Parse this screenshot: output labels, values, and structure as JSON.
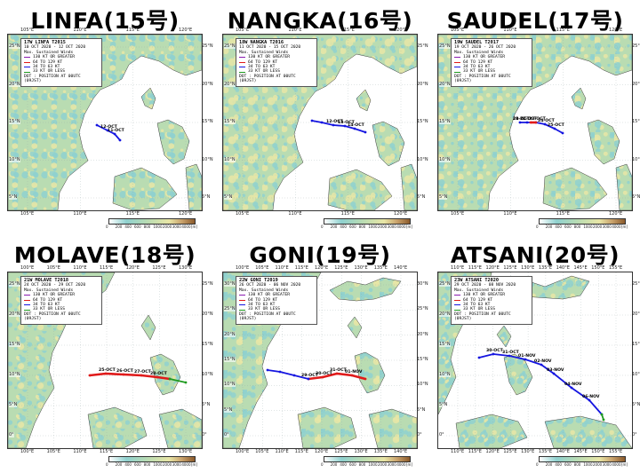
{
  "colors": {
    "land_green": "#b9dcb2",
    "land_yellow": "#e8e6a6",
    "land_cyan": "#8fd1cf",
    "ocean": "#ffffff",
    "track_blue": "#1515e0",
    "track_red": "#e01a1a",
    "track_green": "#1e9a1e",
    "track_purple": "#8a1ab0"
  },
  "panels": [
    {
      "title": "LINFA(15号)",
      "legend_title": "17W  LINFA  T2015",
      "date_range": "10 OCT 2020 - 12 OCT 2020",
      "top_lon_labels": [
        "105°E",
        "110°E",
        "115°E",
        "120°E"
      ],
      "bottom_lon_labels": [
        "105°E",
        "110°E",
        "115°E",
        "120°E"
      ],
      "right_lat_labels": [
        "25°N",
        "20°N",
        "15°N",
        "10°N",
        "5°N"
      ],
      "left_lat_labels": [
        "25°N",
        "20°N",
        "15°N",
        "10°N",
        "5°N"
      ],
      "date_labels": [
        "11-OCT",
        "12-OCT"
      ],
      "tracks": [
        {
          "color": "track_blue",
          "points": [
            [
              126,
              119
            ],
            [
              120,
              112
            ],
            [
              112,
              108
            ],
            [
              100,
              102
            ]
          ]
        }
      ]
    },
    {
      "title": "NANGKA(16号)",
      "legend_title": "18W  NANGKA  T2016",
      "date_range": "11 OCT 2020 - 15 OCT 2020",
      "top_lon_labels": [
        "105°E",
        "110°E",
        "115°E",
        "120°E"
      ],
      "bottom_lon_labels": [
        "105°E",
        "110°E",
        "115°E",
        "120°E"
      ],
      "right_lat_labels": [
        "25°N",
        "20°N",
        "15°N",
        "10°N",
        "5°N"
      ],
      "left_lat_labels": [
        "25°N",
        "20°N",
        "15°N",
        "10°N",
        "5°N"
      ],
      "date_labels": [
        "14-OCT",
        "13-OCT",
        "12-OCT"
      ],
      "tracks": [
        {
          "color": "track_blue",
          "points": [
            [
              160,
              110
            ],
            [
              148,
              106
            ],
            [
              137,
              103
            ],
            [
              124,
              102
            ],
            [
              111,
              99
            ],
            [
              100,
              97
            ]
          ]
        }
      ]
    },
    {
      "title": "SAUDEL(17号)",
      "legend_title": "19W  SAUDEL  T2017",
      "date_range": "19 OCT 2020 - 26 OCT 2020",
      "top_lon_labels": [
        "105°E",
        "110°E",
        "115°E",
        "120°E"
      ],
      "bottom_lon_labels": [
        "105°E",
        "110°E",
        "115°E",
        "120°E"
      ],
      "right_lat_labels": [
        "25°N",
        "20°N",
        "15°N",
        "10°N",
        "5°N"
      ],
      "left_lat_labels": [
        "25°N",
        "20°N",
        "15°N",
        "10°N",
        "5°N"
      ],
      "date_labels": [
        "25-OCT",
        "24-OCT",
        "23-OCT",
        "22-OCT",
        "21-OCT",
        "20-OCT"
      ],
      "tracks": [
        {
          "color": "track_blue",
          "points": [
            [
              140,
              111
            ],
            [
              131,
              106
            ],
            [
              120,
              101
            ],
            [
              110,
              99
            ],
            [
              100,
              99
            ],
            [
              92,
              99
            ]
          ]
        },
        {
          "color": "track_red",
          "points": [
            [
              110,
              99
            ],
            [
              104,
              99
            ]
          ]
        }
      ]
    },
    {
      "title": "MOLAVE(18号)",
      "legend_title": "21W  MOLAVE  T2018",
      "date_range": "24 OCT 2020 - 29 OCT 2020",
      "top_lon_labels": [
        "100°E",
        "105°E",
        "110°E",
        "115°E",
        "120°E",
        "125°E",
        "130°E"
      ],
      "bottom_lon_labels": [
        "100°E",
        "105°E",
        "110°E",
        "115°E",
        "120°E",
        "125°E",
        "130°E"
      ],
      "right_lat_labels": [
        "25°N",
        "20°N",
        "15°N",
        "10°N",
        "5°N",
        "0°"
      ],
      "left_lat_labels": [
        "25°N",
        "20°N",
        "15°N",
        "10°N",
        "5°N",
        "0°"
      ],
      "date_labels": [
        "28-OCT",
        "27-OCT",
        "26-OCT",
        "25-OCT"
      ],
      "tracks": [
        {
          "color": "track_red",
          "points": [
            [
              182,
              120
            ],
            [
              168,
              118
            ],
            [
              150,
              116
            ],
            [
              130,
              115
            ],
            [
              110,
              114
            ],
            [
              92,
              116
            ]
          ]
        },
        {
          "color": "track_green",
          "points": [
            [
              200,
              124
            ],
            [
              182,
              120
            ]
          ]
        }
      ]
    },
    {
      "title": "GONI(19号)",
      "legend_title": "22W  GONI  T2019",
      "date_range": "26 OCT 2020 - 06 NOV 2020",
      "top_lon_labels": [
        "100°E",
        "105°E",
        "110°E",
        "115°E",
        "120°E",
        "125°E",
        "130°E",
        "135°E",
        "140°E"
      ],
      "bottom_lon_labels": [
        "100°E",
        "105°E",
        "110°E",
        "115°E",
        "120°E",
        "125°E",
        "130°E",
        "135°E",
        "140°E"
      ],
      "right_lat_labels": [
        "30°N",
        "25°N",
        "20°N",
        "15°N",
        "10°N",
        "5°N",
        "0°"
      ],
      "left_lat_labels": [
        "30°N",
        "25°N",
        "20°N",
        "15°N",
        "10°N",
        "5°N",
        "0°"
      ],
      "date_labels": [
        "01-NOV",
        "31-OCT",
        "30-OCT",
        "29-OCT"
      ],
      "tracks": [
        {
          "color": "track_red",
          "points": [
            [
              160,
              120
            ],
            [
              145,
              116
            ],
            [
              128,
              114
            ],
            [
              112,
              118
            ],
            [
              96,
              120
            ]
          ]
        },
        {
          "color": "track_blue",
          "points": [
            [
              96,
              120
            ],
            [
              80,
              116
            ],
            [
              64,
              112
            ],
            [
              50,
              110
            ]
          ]
        }
      ]
    },
    {
      "title": "ATSANI(20号)",
      "legend_title": "23W  ATSANI  T2020",
      "date_range": "29 OCT 2020 - 08 NOV 2020",
      "top_lon_labels": [
        "110°E",
        "115°E",
        "120°E",
        "125°E",
        "130°E",
        "135°E",
        "140°E",
        "145°E",
        "150°E",
        "155°E"
      ],
      "bottom_lon_labels": [
        "110°E",
        "115°E",
        "120°E",
        "125°E",
        "130°E",
        "135°E",
        "140°E",
        "145°E",
        "150°E",
        "155°E"
      ],
      "right_lat_labels": [
        "25°N",
        "20°N",
        "15°N",
        "10°N",
        "5°N",
        "0°"
      ],
      "left_lat_labels": [
        "25°N",
        "20°N",
        "15°N",
        "10°N",
        "5°N",
        "0°"
      ],
      "date_labels": [
        "06-NOV",
        "04-NOV",
        "03-NOV",
        "02-NOV",
        "01-NOV",
        "31-OCT",
        "30-OCT"
      ],
      "tracks": [
        {
          "color": "track_blue",
          "points": [
            [
              184,
              160
            ],
            [
              170,
              144
            ],
            [
              150,
              130
            ],
            [
              130,
              114
            ],
            [
              116,
              104
            ],
            [
              98,
              98
            ],
            [
              80,
              94
            ],
            [
              62,
              92
            ],
            [
              46,
              96
            ]
          ]
        },
        {
          "color": "track_green",
          "points": [
            [
              186,
              166
            ],
            [
              184,
              160
            ]
          ]
        }
      ]
    }
  ],
  "legend_common": {
    "header": "Max. Sustained Winds",
    "rows": [
      "130 KT OR GREATER",
      "64 TO 129 KT",
      "34 TO 63 KT",
      "33 KT OR LESS"
    ],
    "row_colors": [
      "track_purple",
      "track_red",
      "track_blue",
      "track_green"
    ],
    "dot_note": "DOT : POSITION AT 00UTC (09JST)"
  },
  "colorbar_ticks": [
    "0",
    "200",
    "400",
    "600",
    "800",
    "1000",
    "2000",
    "3000",
    "4000",
    "[m]"
  ]
}
